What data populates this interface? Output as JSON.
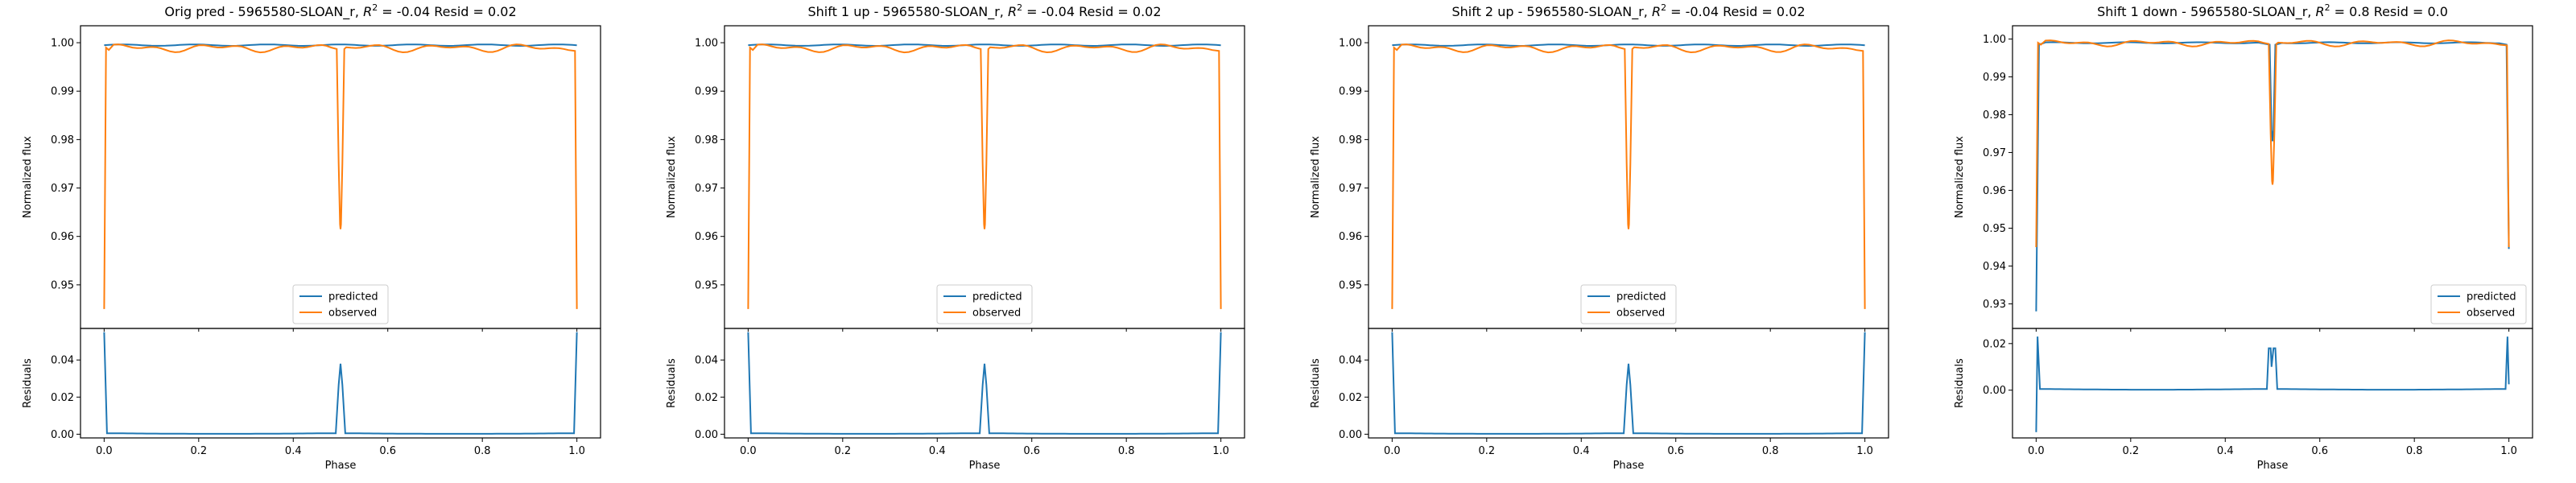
{
  "colors": {
    "predicted": "#1f77b4",
    "observed": "#ff7f0e"
  },
  "chart_data": [
    {
      "type": "line",
      "title": "Orig pred - 5965580-SLOAN_r, R² = -0.04 Resid = 0.02",
      "title_parts": [
        "Orig pred - 5965580-SLOAN_r, ",
        "R",
        "2",
        " = -0.04 Resid = 0.02"
      ],
      "xlabel": "Phase",
      "ylabel": "Normalized flux",
      "resid_ylabel": "Residuals",
      "xlim": [
        -0.05,
        1.05
      ],
      "ylim": [
        0.941,
        1.0035
      ],
      "yticks": [
        "0.95",
        "0.96",
        "0.97",
        "0.98",
        "0.99",
        "1.00"
      ],
      "resid_ylim": [
        -0.002,
        0.057
      ],
      "resid_yticks": [
        "0.00",
        "0.02",
        "0.04"
      ],
      "xticks": [
        "0.0",
        "0.2",
        "0.4",
        "0.6",
        "0.8",
        "1.0"
      ],
      "legend": [
        "predicted",
        "observed"
      ],
      "legend_position": "lower center",
      "predicted": {
        "level": 0.9995,
        "dips": []
      },
      "observed": {
        "level": 0.9995,
        "edge_min": 0.945,
        "center_min": 0.9615
      },
      "residuals": {
        "edge_max": 0.055,
        "center_max": 0.038,
        "baseline": 0.0005,
        "center_min": null
      }
    },
    {
      "type": "line",
      "title": "Shift 1 up - 5965580-SLOAN_r, R² = -0.04 Resid = 0.02",
      "title_parts": [
        "Shift 1 up - 5965580-SLOAN_r, ",
        "R",
        "2",
        " = -0.04 Resid = 0.02"
      ],
      "xlabel": "Phase",
      "ylabel": "Normalized flux",
      "resid_ylabel": "Residuals",
      "xlim": [
        -0.05,
        1.05
      ],
      "ylim": [
        0.941,
        1.0035
      ],
      "yticks": [
        "0.95",
        "0.96",
        "0.97",
        "0.98",
        "0.99",
        "1.00"
      ],
      "resid_ylim": [
        -0.002,
        0.057
      ],
      "resid_yticks": [
        "0.00",
        "0.02",
        "0.04"
      ],
      "xticks": [
        "0.0",
        "0.2",
        "0.4",
        "0.6",
        "0.8",
        "1.0"
      ],
      "legend": [
        "predicted",
        "observed"
      ],
      "legend_position": "lower center",
      "predicted": {
        "level": 0.9995,
        "dips": []
      },
      "observed": {
        "level": 0.9995,
        "edge_min": 0.945,
        "center_min": 0.9615
      },
      "residuals": {
        "edge_max": 0.055,
        "center_max": 0.038,
        "baseline": 0.0005,
        "center_min": null
      }
    },
    {
      "type": "line",
      "title": "Shift 2 up - 5965580-SLOAN_r, R² = -0.04 Resid = 0.02",
      "title_parts": [
        "Shift 2 up - 5965580-SLOAN_r, ",
        "R",
        "2",
        " = -0.04 Resid = 0.02"
      ],
      "xlabel": "Phase",
      "ylabel": "Normalized flux",
      "resid_ylabel": "Residuals",
      "xlim": [
        -0.05,
        1.05
      ],
      "ylim": [
        0.941,
        1.0035
      ],
      "yticks": [
        "0.95",
        "0.96",
        "0.97",
        "0.98",
        "0.99",
        "1.00"
      ],
      "resid_ylim": [
        -0.002,
        0.057
      ],
      "resid_yticks": [
        "0.00",
        "0.02",
        "0.04"
      ],
      "xticks": [
        "0.0",
        "0.2",
        "0.4",
        "0.6",
        "0.8",
        "1.0"
      ],
      "legend": [
        "predicted",
        "observed"
      ],
      "legend_position": "lower center",
      "predicted": {
        "level": 0.9995,
        "dips": []
      },
      "observed": {
        "level": 0.9995,
        "edge_min": 0.945,
        "center_min": 0.9615
      },
      "residuals": {
        "edge_max": 0.055,
        "center_max": 0.038,
        "baseline": 0.0005,
        "center_min": null
      }
    },
    {
      "type": "line",
      "title": "Shift 1 down - 5965580-SLOAN_r, R² = 0.8 Resid = 0.0",
      "title_parts": [
        "Shift 1 down - 5965580-SLOAN_r, ",
        "R",
        "2",
        " = 0.8 Resid = 0.0"
      ],
      "xlabel": "Phase",
      "ylabel": "Normalized flux",
      "resid_ylabel": "Residuals",
      "xlim": [
        -0.05,
        1.05
      ],
      "ylim": [
        0.9235,
        1.0035
      ],
      "yticks": [
        "0.93",
        "0.94",
        "0.95",
        "0.96",
        "0.97",
        "0.98",
        "0.99",
        "1.00"
      ],
      "resid_ylim": [
        -0.0205,
        0.0265
      ],
      "resid_yticks": [
        "0.00",
        "0.02"
      ],
      "xticks": [
        "0.0",
        "0.2",
        "0.4",
        "0.6",
        "0.8",
        "1.0"
      ],
      "legend": [
        "predicted",
        "observed"
      ],
      "legend_position": "lower right",
      "predicted": {
        "level": 0.999,
        "dips": [
          {
            "x": 0.0,
            "y": 0.928
          },
          {
            "x": 0.5,
            "y": 0.973
          },
          {
            "x": 1.0,
            "y": 0.9445
          }
        ]
      },
      "observed": {
        "level": 0.9995,
        "edge_min": 0.945,
        "center_min": 0.9615
      },
      "residuals": {
        "edge_max": 0.023,
        "edge_min": -0.018,
        "center_max": 0.018,
        "baseline": 0.0005,
        "center_min": 0.01
      }
    }
  ]
}
